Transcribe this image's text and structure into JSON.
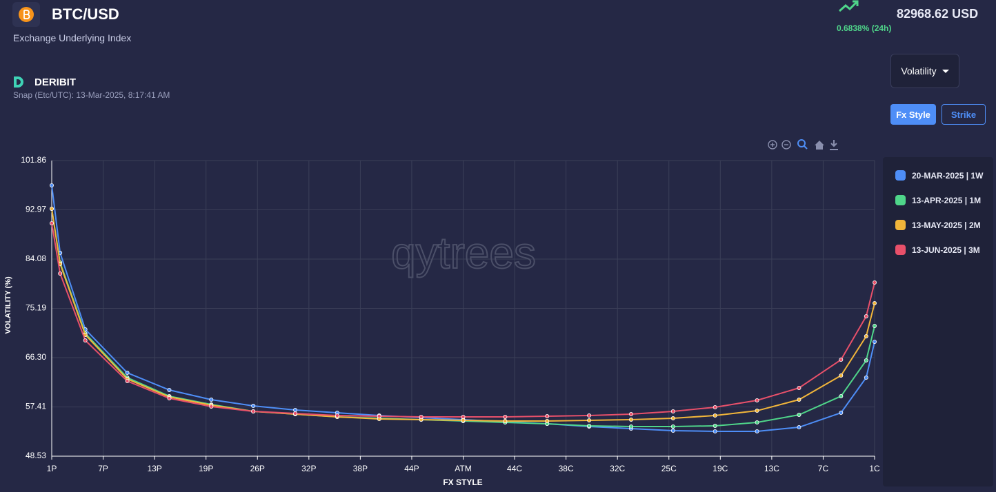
{
  "header": {
    "pair": "BTC/USD",
    "subtitle": "Exchange Underlying Index",
    "change": "0.6838% (24h)",
    "price": "82968.62 USD",
    "exchange": "DERIBIT",
    "snap": "Snap (Etc/UTC): 13-Mar-2025, 8:17:41 AM"
  },
  "controls": {
    "dropdown": "Volatility",
    "buttons": [
      "Fx Style",
      "Strike"
    ]
  },
  "chart_data": {
    "type": "line",
    "watermark": "qytrees",
    "x_label": "FX STYLE",
    "y_label": "VOLATILITY (%)",
    "x": [
      1,
      2,
      5,
      10,
      15,
      20,
      25,
      30,
      35,
      40,
      45,
      50,
      55,
      60,
      65,
      70,
      75,
      80,
      85,
      90,
      95,
      98,
      99
    ],
    "xlim": [
      1,
      99
    ],
    "xticks": [
      {
        "value": 1,
        "label": "1P"
      },
      {
        "value": 7.125,
        "label": "7P"
      },
      {
        "value": 13.25,
        "label": "13P"
      },
      {
        "value": 19.375,
        "label": "19P"
      },
      {
        "value": 25.5,
        "label": "26P"
      },
      {
        "value": 31.625,
        "label": "32P"
      },
      {
        "value": 37.75,
        "label": "38P"
      },
      {
        "value": 43.875,
        "label": "44P"
      },
      {
        "value": 50,
        "label": "ATM"
      },
      {
        "value": 56.125,
        "label": "44C"
      },
      {
        "value": 62.25,
        "label": "38C"
      },
      {
        "value": 68.375,
        "label": "32C"
      },
      {
        "value": 74.5,
        "label": "25C"
      },
      {
        "value": 80.625,
        "label": "19C"
      },
      {
        "value": 86.75,
        "label": "13C"
      },
      {
        "value": 92.875,
        "label": "7C"
      },
      {
        "value": 99,
        "label": "1C"
      }
    ],
    "ylim": [
      48.53,
      101.86
    ],
    "yticks": [
      48.53,
      57.41,
      {
        "value": 66.3,
        "label": "66.30"
      },
      75.19,
      84.08,
      92.97,
      101.86
    ],
    "grid": true,
    "series": [
      {
        "name": "20-MAR-2025 | 1W",
        "color": "#4e8ef7",
        "values": [
          97.39,
          85.2,
          71.4,
          63.57,
          60.47,
          58.72,
          57.6,
          56.86,
          56.36,
          55.86,
          55.49,
          55.12,
          54.75,
          54.37,
          53.88,
          53.5,
          53.13,
          53.01,
          53.01,
          53.75,
          56.36,
          62.7,
          69.17
        ]
      },
      {
        "name": "13-APR-2025 | 1M",
        "color": "#4fd68a",
        "values": [
          93.16,
          83.46,
          70.66,
          62.7,
          59.35,
          57.85,
          56.61,
          56.11,
          55.62,
          55.37,
          55.12,
          54.87,
          54.62,
          54.37,
          54.0,
          53.88,
          53.88,
          54.0,
          54.62,
          55.99,
          59.35,
          65.81,
          72.03
        ]
      },
      {
        "name": "13-MAY-2025 | 2M",
        "color": "#f1b53a",
        "values": [
          93.16,
          83.21,
          70.41,
          62.45,
          59.22,
          57.73,
          56.61,
          56.11,
          55.62,
          55.24,
          55.12,
          55.0,
          54.87,
          54.87,
          55.0,
          55.12,
          55.37,
          55.86,
          56.73,
          58.72,
          63.07,
          70.16,
          76.13
        ]
      },
      {
        "name": "13-JUN-2025 | 3M",
        "color": "#e8506a",
        "values": [
          90.55,
          81.47,
          69.41,
          62.08,
          58.97,
          57.48,
          56.61,
          56.24,
          55.86,
          55.74,
          55.62,
          55.62,
          55.62,
          55.74,
          55.86,
          56.11,
          56.61,
          57.36,
          58.6,
          60.84,
          65.93,
          73.77,
          79.86
        ]
      }
    ]
  }
}
